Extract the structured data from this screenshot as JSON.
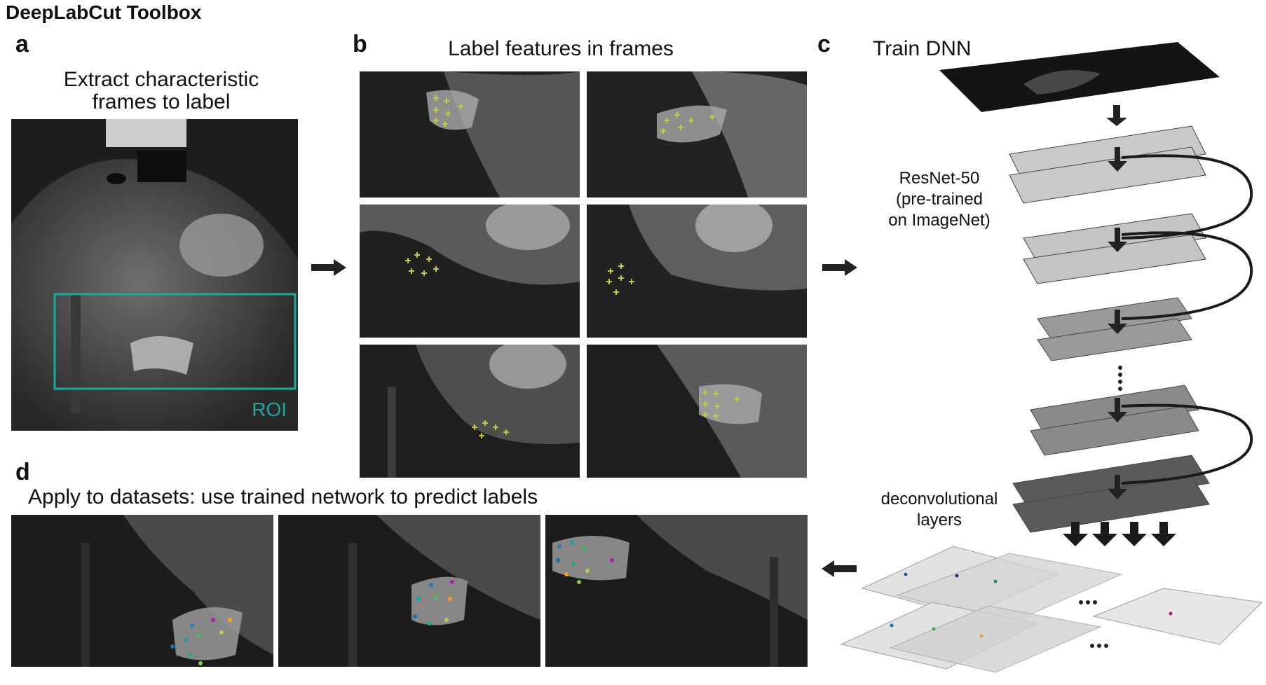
{
  "title": "DeepLabCut Toolbox",
  "panels": {
    "a": {
      "letter": "a",
      "caption_line1": "Extract characteristic",
      "caption_line2": "frames to label",
      "roi_label": "ROI"
    },
    "b": {
      "letter": "b",
      "caption": "Label features in frames"
    },
    "c": {
      "letter": "c",
      "caption": "Train DNN",
      "resnet_line1": "ResNet-50",
      "resnet_line2": "(pre-trained",
      "resnet_line3": "on ImageNet)",
      "deconv_line1": "deconvolutional",
      "deconv_line2": "layers",
      "ellipsis": "..."
    },
    "d": {
      "letter": "d",
      "caption": "Apply to datasets: use trained network to predict labels"
    }
  },
  "colors": {
    "roi": "#1aa99d",
    "label_marker": "#c8c83c",
    "arrow": "#222222",
    "layer_light": "#c9c9c9",
    "layer_mid": "#9a9a9a",
    "layer_dark": "#5a5a5a"
  },
  "icons": [
    "right-arrow-icon",
    "left-arrow-icon",
    "down-arrow-icon"
  ]
}
